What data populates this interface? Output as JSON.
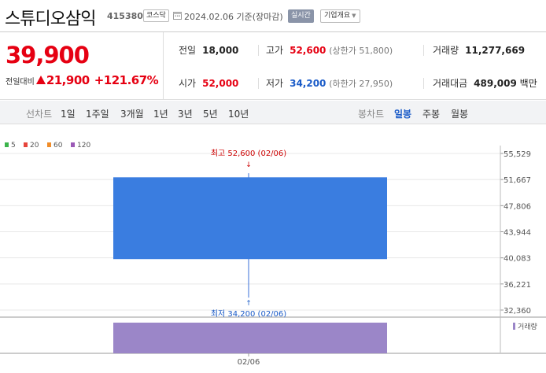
{
  "header": {
    "stock_name": "스튜디오삼익",
    "stock_code": "415380",
    "market": "코스닥",
    "date_note": "2024.02.06 기준(장마감)",
    "realtime": "실시간",
    "company_overview": "기업개요",
    "icons": {
      "calendar": "calendar-icon",
      "dropdown": "chevron-down-icon"
    }
  },
  "summary": {
    "current_price": "39,900",
    "change_label": "전일대비",
    "change_abs": "21,900",
    "change_pct": "+121.67%",
    "prev_close_label": "전일",
    "prev_close": "18,000",
    "open_label": "시가",
    "open": "52,000",
    "high_label": "고가",
    "high": "52,600",
    "upper_limit": "(상한가 51,800)",
    "low_label": "저가",
    "low": "34,200",
    "lower_limit": "(하한가 27,950)",
    "volume_label": "거래량",
    "volume": "11,277,669",
    "value_label": "거래대금",
    "value": "489,009",
    "value_unit": "백만",
    "colors": {
      "up": "#e60012",
      "down": "#1a5bc8"
    }
  },
  "tabs": {
    "line_label": "선차트",
    "line_periods": [
      "1일",
      "1주일",
      "3개월",
      "1년",
      "3년",
      "5년",
      "10년"
    ],
    "candle_label": "봉차트",
    "candle_periods": [
      "일봉",
      "주봉",
      "월봉"
    ],
    "active": "일봉"
  },
  "chart_data": {
    "type": "candlestick",
    "moving_averages": [
      {
        "name": "5",
        "color": "#3cb44b"
      },
      {
        "name": "20",
        "color": "#e6453c"
      },
      {
        "name": "60",
        "color": "#f08c28"
      },
      {
        "name": "120",
        "color": "#9b59b6"
      }
    ],
    "y_ticks": [
      "55,529",
      "51,667",
      "47,806",
      "43,944",
      "40,083",
      "36,221",
      "32,360"
    ],
    "ylim": [
      32360,
      55529
    ],
    "candles": [
      {
        "date": "02/06",
        "open": 52000,
        "high": 52600,
        "low": 34200,
        "close": 39900,
        "volume": 11277669
      }
    ],
    "high_annotation": "최고 52,600 (02/06)",
    "low_annotation": "최저 34,200 (02/06)",
    "volume_legend": "거래량",
    "x_labels": [
      "02/06"
    ],
    "candle_color": "#3a7de0",
    "volume_color": "#9b86c8"
  }
}
